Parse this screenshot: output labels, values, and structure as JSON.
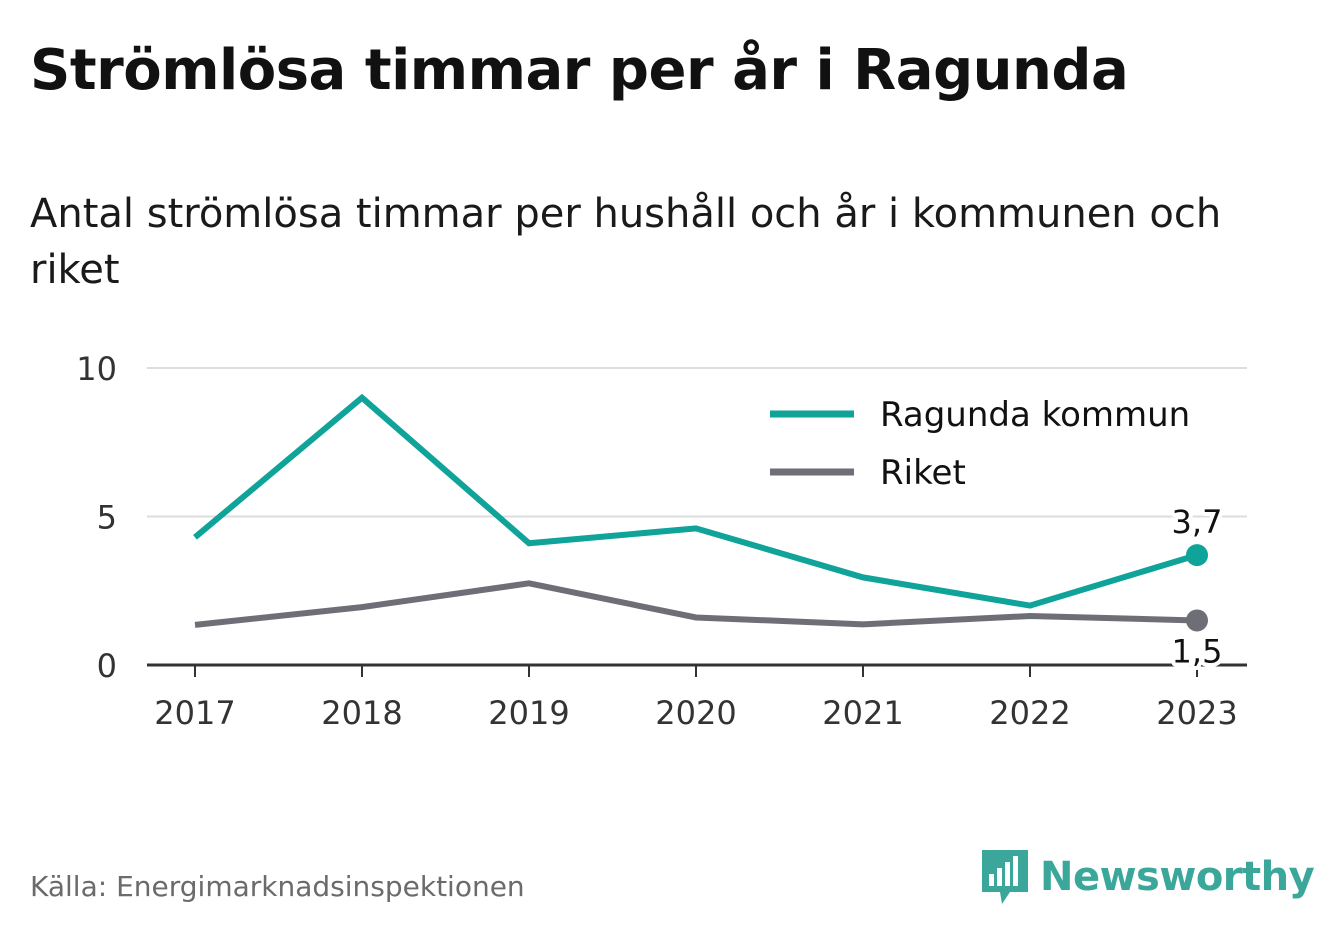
{
  "title": "Strömlösa timmar per år i Ragunda",
  "subtitle": "Antal strömlösa timmar per hushåll och år i kommunen och riket",
  "source": "Källa: Energimarknadsinspektionen",
  "brand": {
    "name": "Newsworthy",
    "color": "#3aa79a"
  },
  "chart_data": {
    "type": "line",
    "categories": [
      "2017",
      "2018",
      "2019",
      "2020",
      "2021",
      "2022",
      "2023"
    ],
    "ylim": [
      0,
      10
    ],
    "yticks": [
      0,
      5,
      10
    ],
    "grid": true,
    "legend_position": "top-right",
    "series": [
      {
        "name": "Ragunda kommun",
        "color": "#0fa39a",
        "values": [
          4.3,
          9.0,
          4.1,
          4.6,
          2.95,
          2.0,
          3.7
        ],
        "end_label": "3,7"
      },
      {
        "name": "Riket",
        "color": "#6e6e76",
        "values": [
          1.35,
          1.95,
          2.75,
          1.6,
          1.37,
          1.65,
          1.5
        ],
        "end_label": "1,5"
      }
    ]
  }
}
